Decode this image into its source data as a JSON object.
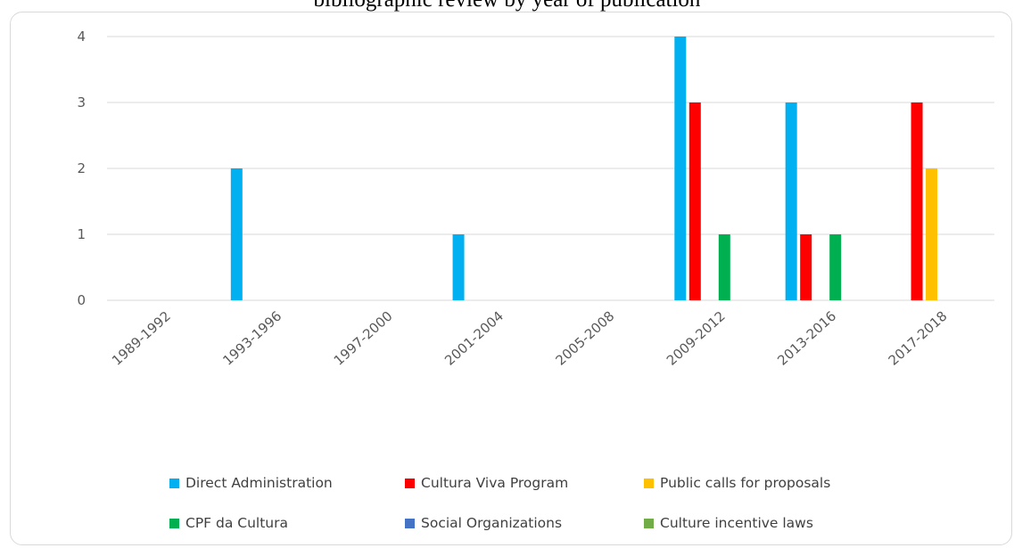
{
  "chart_data": {
    "type": "bar",
    "title": "bibliographic review by year of publication",
    "xlabel": "",
    "ylabel": "",
    "ylim": [
      0,
      4
    ],
    "yticks": [
      0,
      1,
      2,
      3,
      4
    ],
    "grid": true,
    "legend_position": "bottom",
    "categories": [
      "1989-1992",
      "1993-1996",
      "1997-2000",
      "2001-2004",
      "2005-2008",
      "2009-2012",
      "2013-2016",
      "2017-2018"
    ],
    "series": [
      {
        "name": "Direct Administration",
        "color": "#00b0f0",
        "values": [
          0,
          2,
          0,
          1,
          0,
          4,
          3,
          0
        ]
      },
      {
        "name": "Cultura Viva Program",
        "color": "#ff0000",
        "values": [
          0,
          0,
          0,
          0,
          0,
          3,
          1,
          3
        ]
      },
      {
        "name": "Public calls for proposals",
        "color": "#ffc000",
        "values": [
          0,
          0,
          0,
          0,
          0,
          0,
          0,
          2
        ]
      },
      {
        "name": "CPF da Cultura",
        "color": "#00b050",
        "values": [
          0,
          0,
          0,
          0,
          0,
          1,
          1,
          0
        ]
      },
      {
        "name": "Social Organizations",
        "color": "#4472c4",
        "values": [
          0,
          0,
          0,
          0,
          0,
          0,
          0,
          0
        ]
      },
      {
        "name": "Culture incentive laws",
        "color": "#70ad47",
        "values": [
          0,
          0,
          0,
          0,
          0,
          0,
          0,
          0
        ]
      }
    ]
  }
}
